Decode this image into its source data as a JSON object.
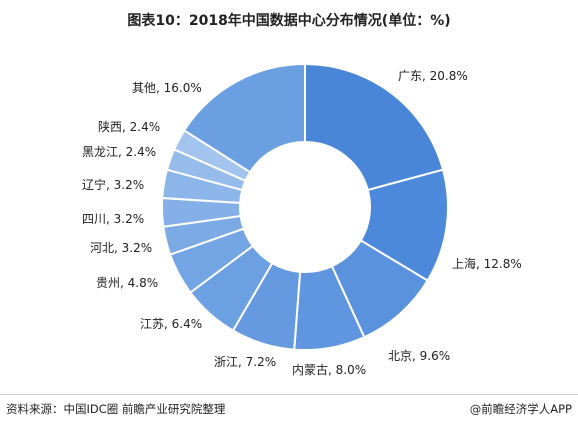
{
  "chart_data": {
    "type": "pie",
    "title": "图表10：2018年中国数据中心分布情况(单位：%)",
    "donut": true,
    "slices": [
      {
        "label": "广东, 20.8%",
        "value": 20.8,
        "color": "#4a86d8"
      },
      {
        "label": "上海, 12.8%",
        "value": 12.8,
        "color": "#4d89da"
      },
      {
        "label": "北京, 9.6%",
        "value": 9.6,
        "color": "#5a92dd"
      },
      {
        "label": "内蒙古, 8.0%",
        "value": 8.0,
        "color": "#5f96df"
      },
      {
        "label": "浙江, 7.2%",
        "value": 7.2,
        "color": "#659ae0"
      },
      {
        "label": "江苏, 6.4%",
        "value": 6.4,
        "color": "#6ba0e2"
      },
      {
        "label": "贵州, 4.8%",
        "value": 4.8,
        "color": "#73a5e4"
      },
      {
        "label": "河北, 3.2%",
        "value": 3.2,
        "color": "#7caae5"
      },
      {
        "label": "四川, 3.2%",
        "value": 3.2,
        "color": "#84afe7"
      },
      {
        "label": "辽宁, 3.2%",
        "value": 3.2,
        "color": "#8cb5e9"
      },
      {
        "label": "黑龙江, 2.4%",
        "value": 2.4,
        "color": "#96bcec"
      },
      {
        "label": "陕西, 2.4%",
        "value": 2.4,
        "color": "#a2c4ee"
      },
      {
        "label": "其他, 16.0%",
        "value": 16.0,
        "color": "#6a9fe2"
      }
    ]
  },
  "footer": {
    "source": "资料来源：中国IDC圈 前瞻产业研究院整理",
    "brand": "@前瞻经济学人APP"
  }
}
